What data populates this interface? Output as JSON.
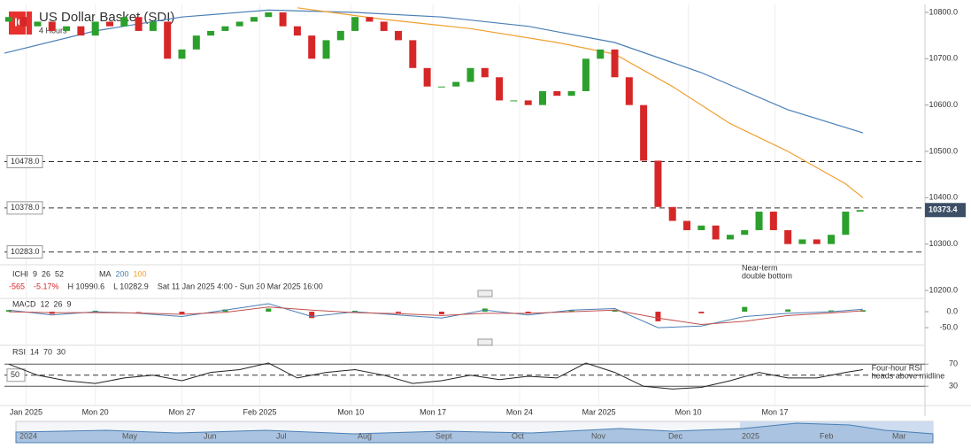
{
  "header": {
    "logo": "IG",
    "title": "US Dollar Basket (SDI)",
    "timeframe": "4 Hours"
  },
  "legend": {
    "ichimoku": [
      "ICHI",
      "9",
      "26",
      "52"
    ],
    "ma": [
      "MA",
      "200",
      "100"
    ],
    "macd": [
      "MACD",
      "12",
      "26",
      "9"
    ],
    "rsi": [
      "RSI",
      "14",
      "70",
      "30"
    ]
  },
  "stats": {
    "change": "-565",
    "change_pct": "-5.17%",
    "high": "H 10990.6",
    "low": "L 10282.9",
    "range": "Sat 11 Jan 2025 4:00 - Sun 30 Mar 2025 16:00"
  },
  "navigator": [
    "2024",
    "May",
    "Jun",
    "Jul",
    "Aug",
    "Sept",
    "Oct",
    "Nov",
    "Dec",
    "2025",
    "Feb",
    "Mar"
  ],
  "chart_data": [
    {
      "type": "candlestick",
      "open": [
        10780,
        10790,
        10770,
        10780,
        10760,
        10770,
        10750,
        10780,
        10770,
        10790,
        10760,
        10780,
        10700,
        10720,
        10750,
        10760,
        10770,
        10780,
        10790,
        10800,
        10770,
        10750,
        10700,
        10740,
        10760,
        10790,
        10780,
        10760,
        10740,
        10680,
        10640,
        10640,
        10650,
        10680,
        10660,
        10610,
        10610,
        10600,
        10630,
        10620,
        10630,
        10700,
        10720,
        10660,
        10600,
        10480,
        10380,
        10350,
        10330,
        10340,
        10310,
        10320,
        10330,
        10370,
        10330,
        10300,
        10310,
        10300,
        10320,
        10370
      ],
      "close": [
        10790,
        10770,
        10780,
        10760,
        10770,
        10750,
        10780,
        10770,
        10790,
        10760,
        10780,
        10700,
        10720,
        10750,
        10760,
        10770,
        10780,
        10790,
        10800,
        10770,
        10750,
        10700,
        10740,
        10760,
        10790,
        10780,
        10760,
        10740,
        10680,
        10640,
        10640,
        10650,
        10680,
        10660,
        10610,
        10610,
        10600,
        10630,
        10620,
        10630,
        10700,
        10720,
        10660,
        10600,
        10480,
        10380,
        10350,
        10330,
        10340,
        10310,
        10320,
        10330,
        10370,
        10330,
        10300,
        10310,
        10300,
        10320,
        10370,
        10373.4
      ],
      "colors": {
        "up": "#2ca02c",
        "down": "#d62728"
      },
      "xlim": [
        -0.3,
        63.5
      ],
      "ylim": [
        10200,
        10800
      ],
      "yticks": [
        {
          "value": 10800,
          "label": "10800.0"
        },
        {
          "value": 10700,
          "label": "10700.0"
        },
        {
          "value": 10600,
          "label": "10600.0"
        },
        {
          "value": 10500,
          "label": "10500.0"
        },
        {
          "value": 10400,
          "label": "10400.0"
        },
        {
          "value": 10300,
          "label": "10300.0"
        },
        {
          "value": 10200,
          "label": "10200.0"
        }
      ],
      "xticks": [
        {
          "value": 1.2,
          "label": "Jan 2025"
        },
        {
          "value": 6,
          "label": "Mon 20"
        },
        {
          "value": 12,
          "label": "Mon 27"
        },
        {
          "value": 17.4,
          "label": "Feb 2025"
        },
        {
          "value": 23.7,
          "label": "Mon 10"
        },
        {
          "value": 29.4,
          "label": "Mon 17"
        },
        {
          "value": 35.4,
          "label": "Mon 24"
        },
        {
          "value": 40.9,
          "label": "Mar 2025"
        },
        {
          "value": 47.1,
          "label": "Mon 10"
        },
        {
          "value": 53.1,
          "label": "Mon 17"
        }
      ],
      "series": [
        {
          "color": "#4a7fb5",
          "x": [
            -0.3,
            6,
            12,
            18,
            24,
            30,
            36,
            42,
            48,
            54,
            59.2
          ],
          "values": [
            10712,
            10760,
            10790,
            10805,
            10800,
            10790,
            10770,
            10735,
            10670,
            10590,
            10540
          ]
        },
        {
          "color": "#f0a030",
          "x": [
            20,
            26,
            32,
            38,
            42,
            46,
            50,
            54,
            58,
            59.2
          ],
          "values": [
            10810,
            10785,
            10765,
            10735,
            10710,
            10640,
            10560,
            10500,
            10430,
            10400
          ]
        }
      ],
      "levels": [
        {
          "value": 10478,
          "label": "10478.0"
        },
        {
          "value": 10378,
          "label": "10378.0"
        },
        {
          "value": 10283,
          "label": "10283.0"
        }
      ],
      "last": {
        "value": 10373.4,
        "label": "10373.4"
      },
      "annotation": {
        "text": [
          "Near-term",
          "double bottom"
        ],
        "x": 50.8,
        "y": 10270
      }
    },
    {
      "type": "macd",
      "xlim": [
        -0.3,
        63.5
      ],
      "ylim": [
        -83,
        39
      ],
      "yticks": [
        {
          "value": 0,
          "label": "0.0"
        },
        {
          "value": -50,
          "label": "-50.0"
        }
      ],
      "x": [
        0,
        3,
        6,
        9,
        12,
        15,
        18,
        21,
        24,
        27,
        30,
        33,
        36,
        39,
        42,
        45,
        48,
        51,
        54,
        57,
        59.2
      ],
      "macd": [
        5,
        -10,
        0,
        -5,
        -15,
        5,
        25,
        -15,
        0,
        -10,
        -20,
        5,
        -10,
        5,
        10,
        -50,
        -45,
        -15,
        -5,
        0,
        8
      ],
      "signal": [
        0,
        -3,
        -3,
        -4,
        -8,
        -2,
        15,
        5,
        -3,
        -6,
        -12,
        -5,
        -5,
        0,
        5,
        -20,
        -40,
        -30,
        -12,
        -4,
        3
      ],
      "histogram": [
        5,
        -7,
        3,
        -1,
        -7,
        7,
        10,
        -20,
        3,
        -4,
        -8,
        10,
        -5,
        5,
        5,
        -30,
        -5,
        15,
        7,
        4,
        5
      ],
      "colors": {
        "macd": "#4a7fb5",
        "signal": "#c0504d",
        "up": "#2ca02c",
        "down": "#d62728"
      }
    },
    {
      "type": "rsi",
      "xlim": [
        -0.3,
        63.5
      ],
      "ylim": [
        8,
        96
      ],
      "yticks": [
        70,
        30
      ],
      "midline": 50,
      "x": [
        0,
        2,
        4,
        6,
        8,
        10,
        12,
        14,
        16,
        18,
        20,
        22,
        24,
        26,
        28,
        30,
        32,
        34,
        36,
        38,
        40,
        42,
        44,
        46,
        48,
        50,
        52,
        54,
        56,
        58,
        59.2
      ],
      "values": [
        70,
        50,
        40,
        35,
        45,
        50,
        40,
        55,
        60,
        72,
        45,
        55,
        60,
        50,
        35,
        40,
        50,
        42,
        48,
        45,
        72,
        55,
        30,
        25,
        28,
        40,
        55,
        45,
        45,
        55,
        60
      ],
      "color": "#222222",
      "annotation": {
        "text": [
          "Four-hour RSI",
          "heads above midline"
        ],
        "x": 59.8,
        "y": 62
      }
    }
  ]
}
